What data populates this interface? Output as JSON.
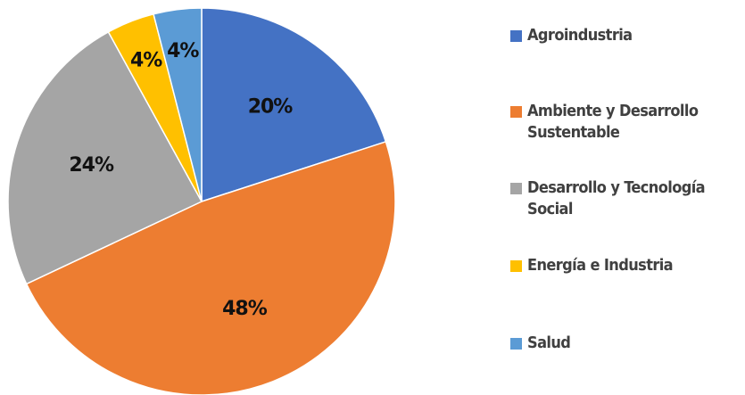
{
  "chart_data": {
    "type": "pie",
    "categories": [
      "Agroindustria",
      "Ambiente y Desarrollo Sustentable",
      "Desarrollo y Tecnología Social",
      "Energía e Industria",
      "Salud"
    ],
    "values": [
      20,
      48,
      24,
      4,
      4
    ],
    "value_labels": [
      "20%",
      "48%",
      "24%",
      "4%",
      "4%"
    ],
    "colors": [
      "#4472c4",
      "#ed7d31",
      "#a5a5a5",
      "#ffc000",
      "#5b9bd5"
    ],
    "legend": "right"
  }
}
